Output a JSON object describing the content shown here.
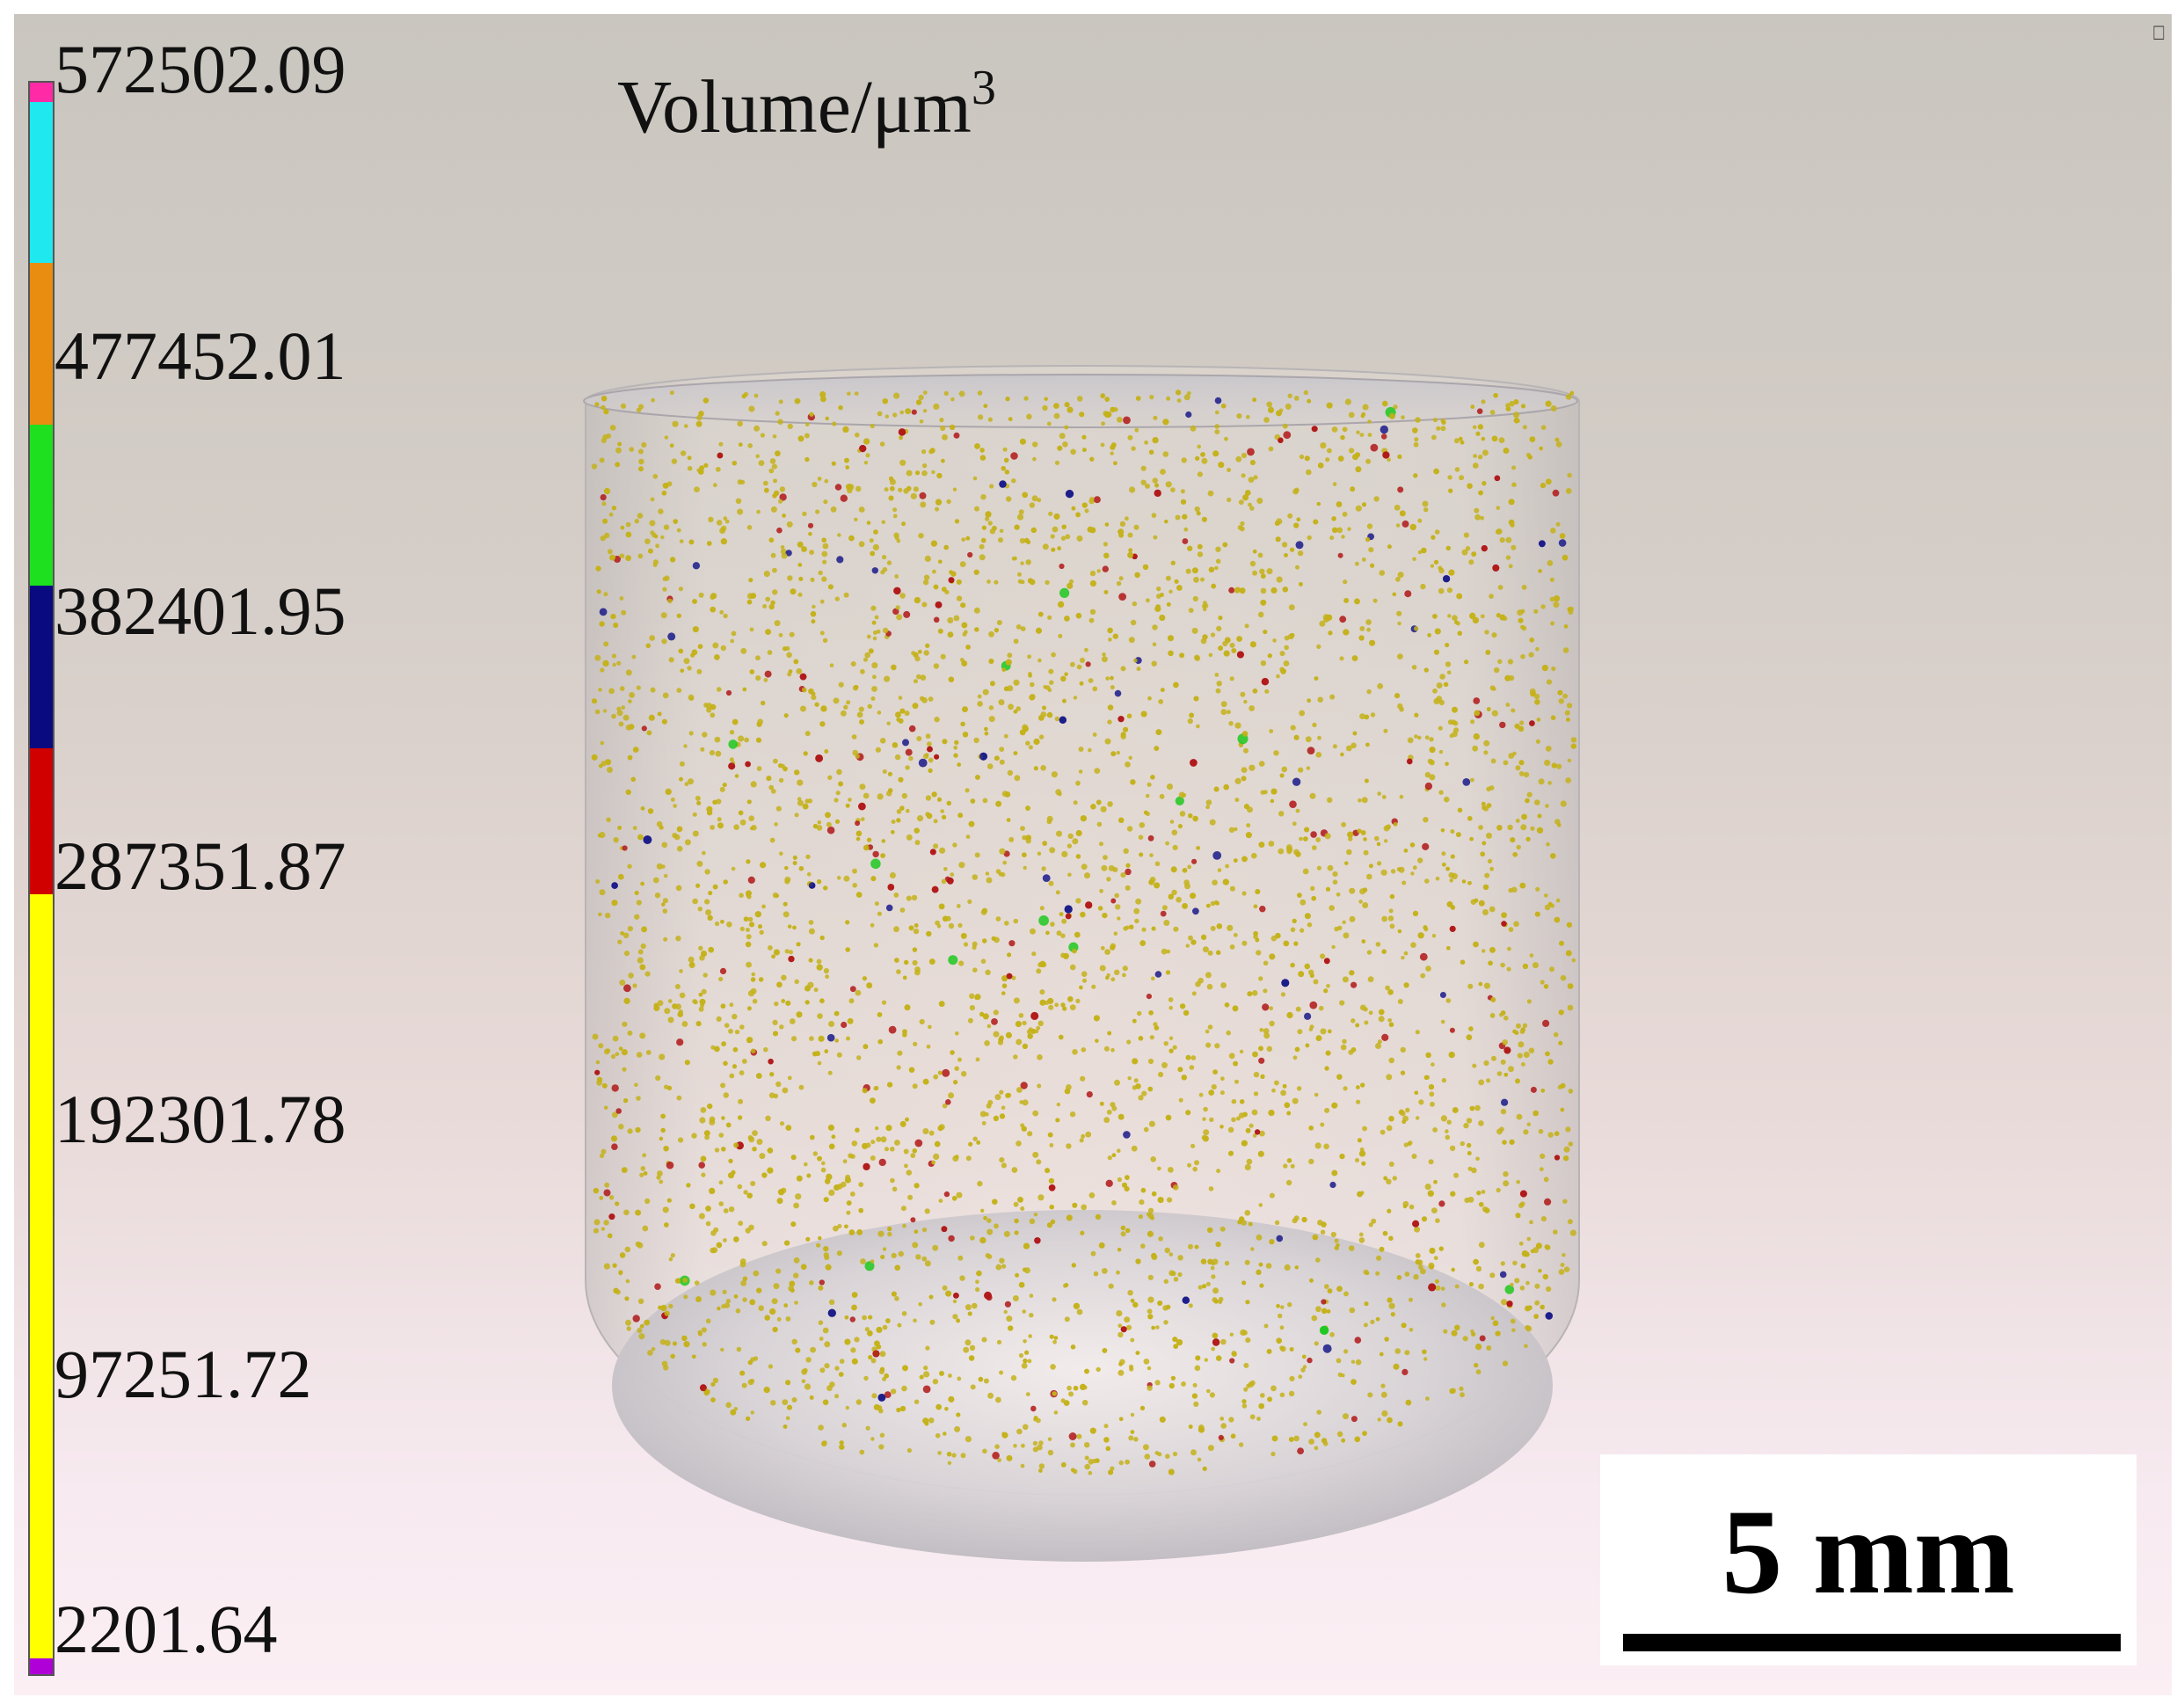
{
  "title": {
    "text": "Volume/μm",
    "superscript": "3"
  },
  "legend": {
    "ticks": [
      "572502.09",
      "477452.01",
      "382401.95",
      "287351.87",
      "192301.78",
      "97251.72",
      "2201.64"
    ],
    "colors": [
      "#ff2aa6",
      "#1fe8ef",
      "#e88d10",
      "#1ee01e",
      "#0a0a80",
      "#d00000",
      "#ffff00",
      "#b000d8"
    ]
  },
  "scale_bar": {
    "label": "5 mm"
  },
  "particle_colors": {
    "yellow": "#c4b21a",
    "red": "#b01818",
    "blue": "#1a1a8a",
    "green": "#1fc81f"
  },
  "icons": {
    "corner": "view-cube-icon"
  }
}
